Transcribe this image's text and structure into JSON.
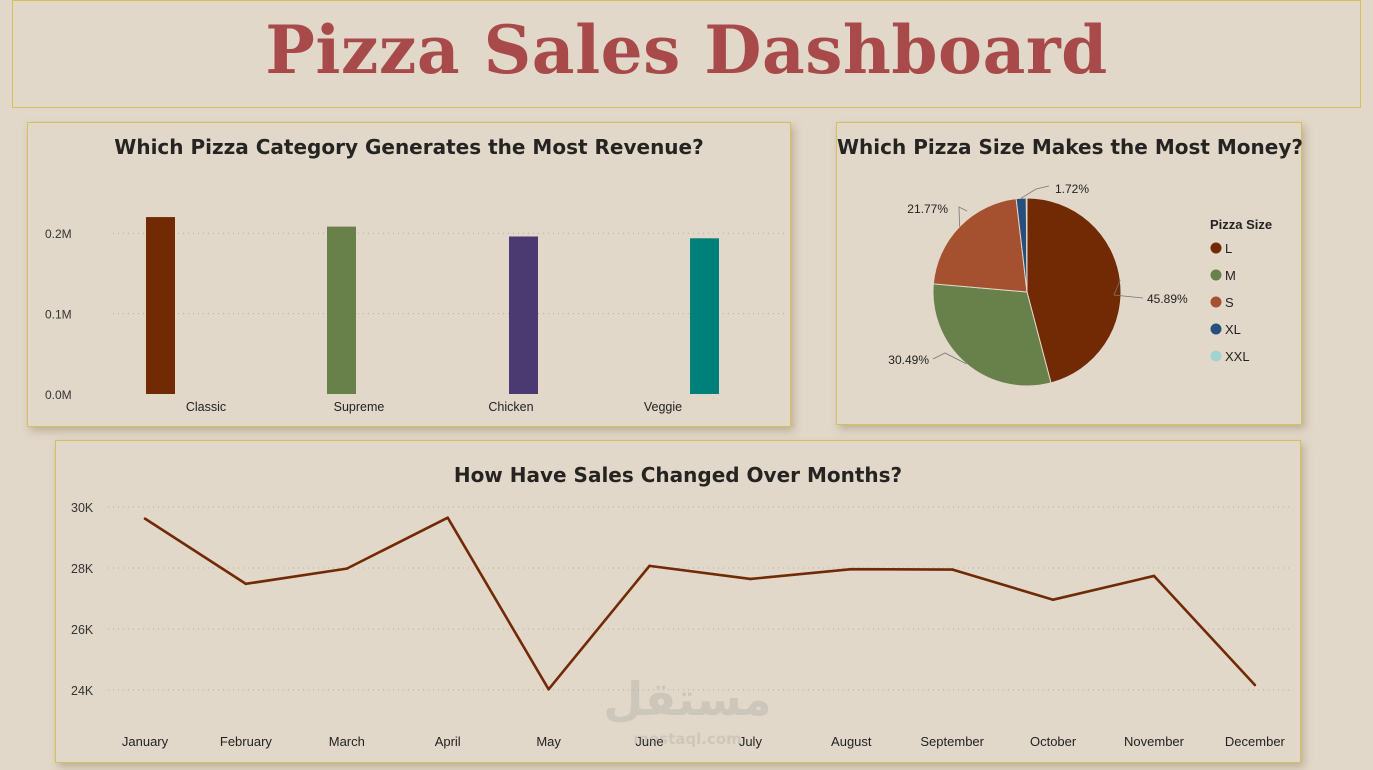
{
  "dashboard": {
    "title": "Pizza Sales Dashboard"
  },
  "colors": {
    "classic": "#722a05",
    "supreme": "#68804a",
    "chicken": "#4b3a72",
    "veggie": "#00807a",
    "L": "#722a05",
    "M": "#68804a",
    "S": "#a5502e",
    "XL": "#264f80",
    "XXL": "#9fd5d1",
    "line": "#722a05",
    "title_red": "#a84a49",
    "border": "#d9bf58"
  },
  "watermark": {
    "arabic": "مستقل",
    "latin": "mostaql.com"
  },
  "chart_data": [
    {
      "type": "bar",
      "title": "Which Pizza Category Generates the Most Revenue?",
      "categories": [
        "Classic",
        "Supreme",
        "Chicken",
        "Veggie"
      ],
      "values": [
        220053,
        208197,
        195920,
        193690
      ],
      "ylim": [
        0,
        250000
      ],
      "yticks": [
        {
          "v": 0,
          "label": "0.0M"
        },
        {
          "v": 100000,
          "label": "0.1M"
        },
        {
          "v": 200000,
          "label": "0.2M"
        }
      ],
      "grid": true
    },
    {
      "type": "pie",
      "title": "Which Pizza Size Makes the Most Money?",
      "legend_title": "Pizza Size",
      "legend_position": "right",
      "slices": [
        {
          "label": "L",
          "value": 45.89,
          "text": "45.89%"
        },
        {
          "label": "M",
          "value": 30.49,
          "text": "30.49%"
        },
        {
          "label": "S",
          "value": 21.77,
          "text": "21.77%"
        },
        {
          "label": "XL",
          "value": 1.72,
          "text": "1.72%"
        },
        {
          "label": "XXL",
          "value": 0.12,
          "text": ""
        }
      ]
    },
    {
      "type": "line",
      "title": "How Have Sales Changed Over Months?",
      "categories": [
        "January",
        "February",
        "March",
        "April",
        "May",
        "June",
        "July",
        "August",
        "September",
        "October",
        "November",
        "December"
      ],
      "values": [
        29620,
        27480,
        27980,
        29650,
        24020,
        28070,
        27640,
        27960,
        27950,
        26960,
        27740,
        24160
      ],
      "ylim": [
        23800,
        30100
      ],
      "yticks": [
        {
          "v": 24000,
          "label": "24K"
        },
        {
          "v": 26000,
          "label": "26K"
        },
        {
          "v": 28000,
          "label": "28K"
        },
        {
          "v": 30000,
          "label": "30K"
        }
      ],
      "grid": true
    }
  ]
}
